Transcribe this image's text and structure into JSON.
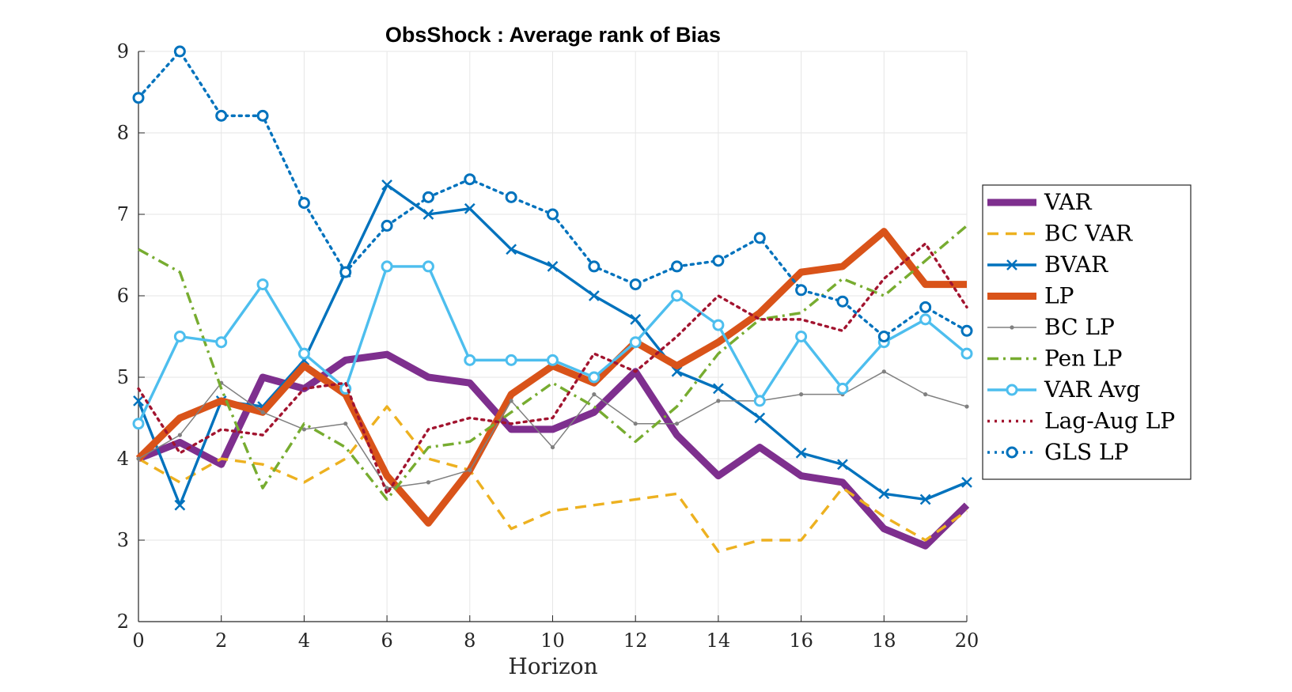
{
  "chart_data": {
    "type": "line",
    "title": "ObsShock : Average rank of Bias",
    "xlabel": "Horizon",
    "ylabel": "",
    "xlim": [
      0,
      20
    ],
    "ylim": [
      2,
      9
    ],
    "xticks": [
      0,
      2,
      4,
      6,
      8,
      10,
      12,
      14,
      16,
      18,
      20
    ],
    "yticks": [
      2,
      3,
      4,
      5,
      6,
      7,
      8,
      9
    ],
    "grid": true,
    "legend_position": "right-outside",
    "x": [
      0,
      1,
      2,
      3,
      4,
      5,
      6,
      7,
      8,
      9,
      10,
      11,
      12,
      13,
      14,
      15,
      16,
      17,
      18,
      19,
      20
    ],
    "series": [
      {
        "name": "VAR",
        "color": "#7E2F8E",
        "style": "solid",
        "marker": "none",
        "width": "thick",
        "values": [
          4.0,
          4.2,
          3.93,
          5.0,
          4.86,
          5.21,
          5.28,
          5.0,
          4.93,
          4.36,
          4.36,
          4.57,
          5.07,
          4.29,
          3.79,
          4.14,
          3.79,
          3.71,
          3.14,
          2.93,
          3.43
        ]
      },
      {
        "name": "BC VAR",
        "color": "#EDB120",
        "style": "dashed",
        "marker": "none",
        "width": "normal",
        "values": [
          4.0,
          3.71,
          4.0,
          3.93,
          3.71,
          4.0,
          4.64,
          4.0,
          3.86,
          3.14,
          3.36,
          3.43,
          3.5,
          3.57,
          2.86,
          3.0,
          3.0,
          3.64,
          3.29,
          3.0,
          3.36
        ]
      },
      {
        "name": "BVAR",
        "color": "#0072BD",
        "style": "solid",
        "marker": "x",
        "width": "normal",
        "values": [
          4.71,
          3.43,
          4.71,
          4.64,
          5.21,
          6.29,
          7.36,
          7.0,
          7.07,
          6.57,
          6.36,
          6.0,
          5.71,
          5.07,
          4.86,
          4.5,
          4.07,
          3.93,
          3.57,
          3.5,
          3.71
        ]
      },
      {
        "name": "LP",
        "color": "#D95319",
        "style": "solid",
        "marker": "none",
        "width": "thick",
        "values": [
          4.0,
          4.5,
          4.71,
          4.57,
          5.14,
          4.79,
          3.79,
          3.21,
          3.86,
          4.79,
          5.14,
          4.93,
          5.43,
          5.14,
          5.43,
          5.79,
          6.29,
          6.36,
          6.79,
          6.14,
          6.14
        ]
      },
      {
        "name": "BC LP",
        "color": "#808080",
        "style": "solid",
        "marker": "dot",
        "width": "thin",
        "values": [
          4.0,
          4.29,
          4.93,
          4.57,
          4.36,
          4.43,
          3.64,
          3.71,
          3.86,
          4.71,
          4.14,
          4.79,
          4.43,
          4.43,
          4.71,
          4.71,
          4.79,
          4.79,
          5.07,
          4.79,
          4.64
        ]
      },
      {
        "name": "Pen LP",
        "color": "#77AC30",
        "style": "dashdot",
        "marker": "none",
        "width": "normal",
        "values": [
          6.57,
          6.29,
          4.86,
          3.64,
          4.43,
          4.14,
          3.5,
          4.14,
          4.21,
          4.57,
          4.93,
          4.64,
          4.21,
          4.64,
          5.29,
          5.71,
          5.79,
          6.21,
          6.0,
          6.43,
          6.86
        ]
      },
      {
        "name": "VAR Avg",
        "color": "#4DBEEE",
        "style": "solid",
        "marker": "o",
        "width": "normal",
        "values": [
          4.43,
          5.5,
          5.43,
          6.14,
          5.29,
          4.86,
          6.36,
          6.36,
          5.21,
          5.21,
          5.21,
          5.0,
          5.43,
          6.0,
          5.64,
          4.71,
          5.5,
          4.86,
          5.43,
          5.71,
          5.29
        ]
      },
      {
        "name": "Lag-Aug LP",
        "color": "#A2142F",
        "style": "dotted",
        "marker": "none",
        "width": "normal",
        "values": [
          4.86,
          4.07,
          4.36,
          4.29,
          4.86,
          4.93,
          3.57,
          4.36,
          4.5,
          4.43,
          4.5,
          5.29,
          5.07,
          5.5,
          6.0,
          5.71,
          5.71,
          5.57,
          6.21,
          6.64,
          5.86
        ]
      },
      {
        "name": "GLS LP",
        "color": "#0072BD",
        "style": "dotted",
        "marker": "o",
        "width": "normal",
        "values": [
          8.43,
          9.0,
          8.21,
          8.21,
          7.14,
          6.29,
          6.86,
          7.21,
          7.43,
          7.21,
          7.0,
          6.36,
          6.14,
          6.36,
          6.43,
          6.71,
          6.07,
          5.93,
          5.5,
          5.86,
          5.57
        ]
      }
    ]
  }
}
